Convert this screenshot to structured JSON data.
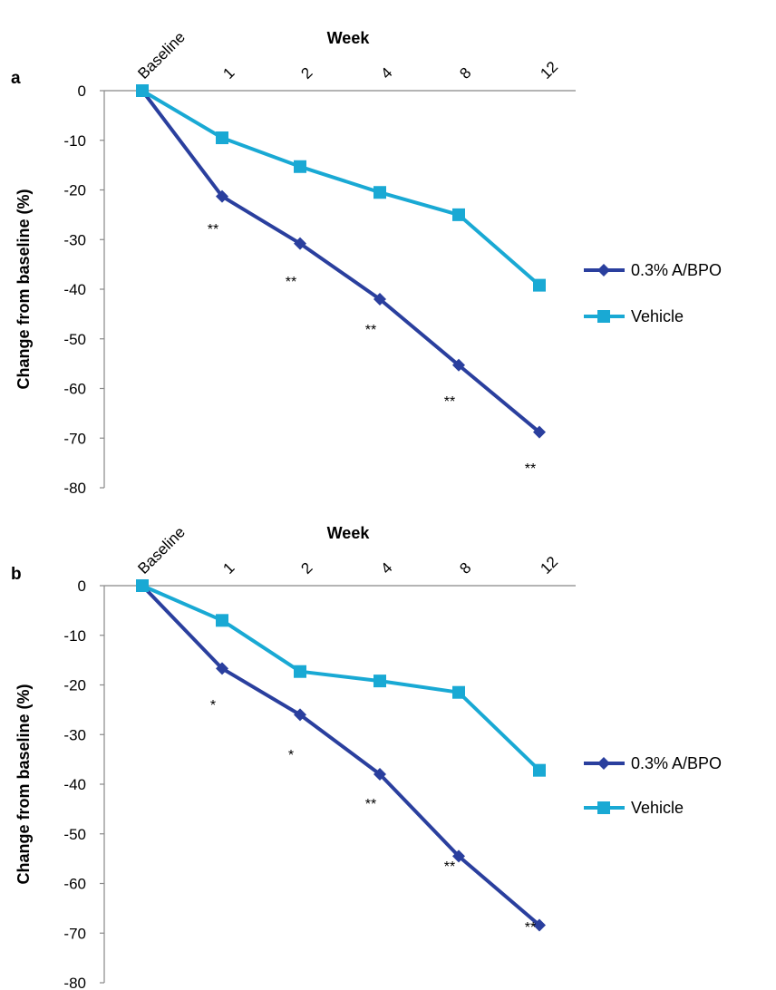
{
  "chart_data": [
    {
      "type": "line",
      "panel_label": "a",
      "xlabel": "Week",
      "ylabel": "Change from baseline (%)",
      "categories": [
        "Baseline",
        "1",
        "2",
        "4",
        "8",
        "12"
      ],
      "ylim": [
        -80,
        0
      ],
      "yticks": [
        "0",
        "-10",
        "-20",
        "-30",
        "-40",
        "-50",
        "-60",
        "-70",
        "-80"
      ],
      "series": [
        {
          "name": "0.3% A/BPO",
          "marker": "diamond",
          "color": "#2a3f9e",
          "values": [
            0,
            -21.3,
            -30.8,
            -42.0,
            -55.3,
            -68.8
          ]
        },
        {
          "name": "Vehicle",
          "marker": "square",
          "color": "#19a9d4",
          "values": [
            0,
            -9.5,
            -15.3,
            -20.5,
            -25.0,
            -39.2
          ]
        }
      ],
      "annotations": [
        "",
        "**",
        "**",
        "**",
        "**",
        "**"
      ],
      "legend": "right"
    },
    {
      "type": "line",
      "panel_label": "b",
      "xlabel": "Week",
      "ylabel": "Change from baseline (%)",
      "categories": [
        "Baseline",
        "1",
        "2",
        "4",
        "8",
        "12"
      ],
      "ylim": [
        -80,
        0
      ],
      "yticks": [
        "0",
        "-10",
        "-20",
        "-30",
        "-40",
        "-50",
        "-60",
        "-70",
        "-80"
      ],
      "series": [
        {
          "name": "0.3% A/BPO",
          "marker": "diamond",
          "color": "#2a3f9e",
          "values": [
            0,
            -16.7,
            -26.0,
            -38.0,
            -54.5,
            -68.4
          ]
        },
        {
          "name": "Vehicle",
          "marker": "square",
          "color": "#19a9d4",
          "values": [
            0,
            -7.0,
            -17.3,
            -19.2,
            -21.5,
            -37.2
          ]
        }
      ],
      "annotations": [
        "",
        "*",
        "*",
        "**",
        "**",
        "**"
      ],
      "legend": "right"
    }
  ]
}
